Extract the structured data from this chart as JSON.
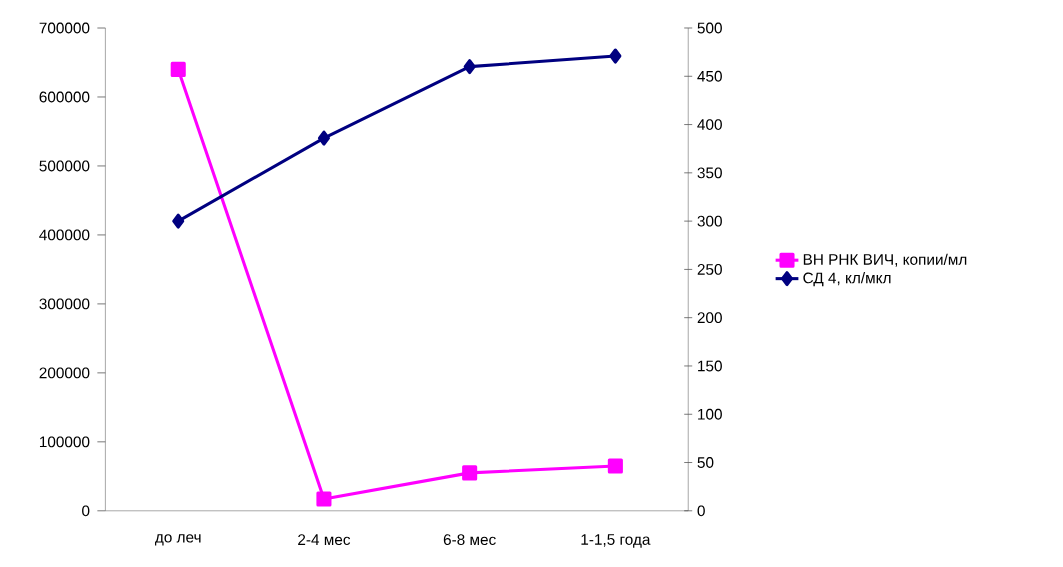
{
  "chart_data": {
    "type": "line",
    "categories": [
      "до леч",
      "2-4 мес",
      "6-8 мес",
      "1-1,5 года"
    ],
    "series": [
      {
        "name": "ВН РНК ВИЧ, копии/мл",
        "color": "#ff00ff",
        "marker": "square",
        "values": [
          640000,
          17000,
          55000,
          65000
        ]
      },
      {
        "name": "СД 4, кл/мкл",
        "color": "#000080",
        "marker": "diamond",
        "axis": "y2",
        "values": [
          300,
          386,
          460,
          471
        ]
      }
    ],
    "ylim": [
      0,
      700000
    ],
    "yticks": [
      0,
      100000,
      200000,
      300000,
      400000,
      500000,
      600000,
      700000
    ],
    "y2lim": [
      0,
      500
    ],
    "y2ticks": [
      0,
      50,
      100,
      150,
      200,
      250,
      300,
      350,
      400,
      450,
      500
    ],
    "grid": false,
    "legend": "right"
  }
}
